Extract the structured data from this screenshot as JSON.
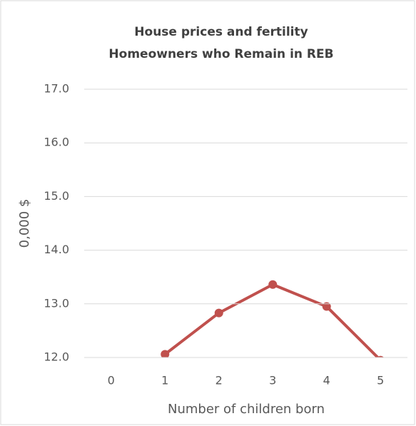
{
  "chart_data": {
    "type": "line",
    "title": "House prices and fertility",
    "subtitle": "Homeowners who Remain in REB",
    "x_label": "Number of children born",
    "y_label": "0,000 $",
    "categories": [
      "0",
      "1",
      "2",
      "3",
      "4",
      "5"
    ],
    "series": [
      {
        "name": "Homeowners who Remain in REB",
        "color": "#c0504d",
        "values": [
          null,
          12.06,
          12.83,
          13.36,
          12.95,
          11.95
        ]
      }
    ],
    "ylim": [
      12,
      17
    ],
    "yticks": [
      {
        "value": 12,
        "label": "12.0"
      },
      {
        "value": 13,
        "label": "13.0"
      },
      {
        "value": 14,
        "label": "14.0"
      },
      {
        "value": 15,
        "label": "15.0"
      },
      {
        "value": 16,
        "label": "16.0"
      },
      {
        "value": 17,
        "label": "17.0"
      }
    ],
    "grid": true
  }
}
